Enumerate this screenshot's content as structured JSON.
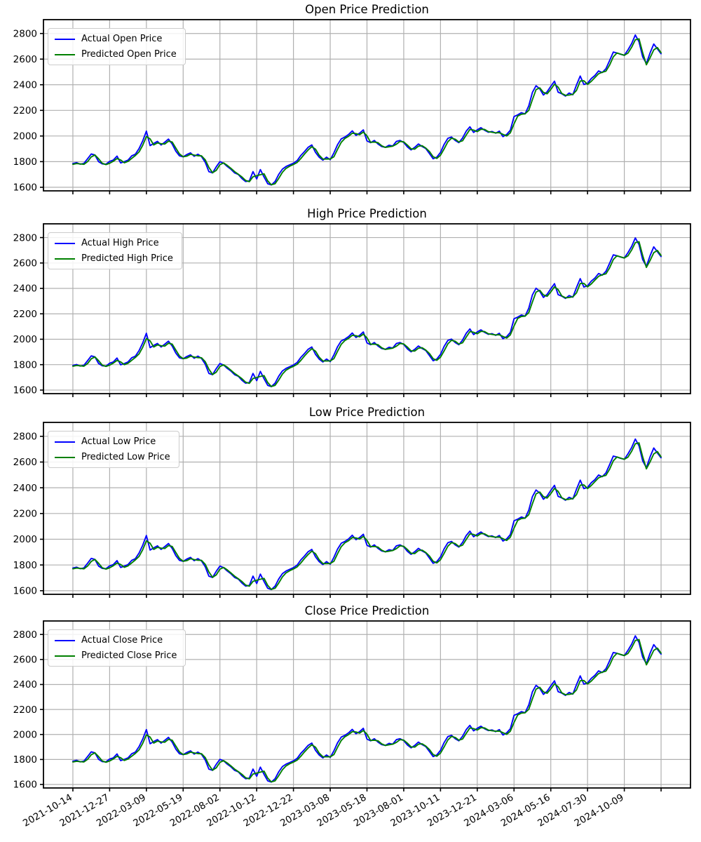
{
  "figure": {
    "background": "#ffffff",
    "description": "Four stacked line charts comparing actual vs predicted OHLC prices"
  },
  "chart_data": {
    "type": "line",
    "grid": true,
    "legend_position": "upper left",
    "colors": {
      "actual": "#0000ff",
      "predicted": "#008000",
      "grid": "#b0b0b0",
      "axis": "#000000"
    },
    "y_axis": {
      "ticks": [
        1600,
        1800,
        2000,
        2200,
        2400,
        2600,
        2800
      ],
      "ylim_render": [
        1572,
        2908
      ]
    },
    "x_axis": {
      "tick_labels": [
        "2021-10-14",
        "2021-12-27",
        "2022-03-09",
        "2022-05-19",
        "2022-08-02",
        "2022-10-12",
        "2022-12-22",
        "2023-03-08",
        "2023-05-18",
        "2023-08-01",
        "2023-10-11",
        "2023-12-21",
        "2024-03-06",
        "2024-05-16",
        "2024-07-30",
        "2024-10-09"
      ],
      "tick_step_days": 50,
      "total_gridlines": 17,
      "label_rotation_deg": 30
    },
    "sample_step_days": 5,
    "series_base": {
      "actual": [
        1785,
        1792,
        1780,
        1786,
        1822,
        1860,
        1852,
        1800,
        1782,
        1780,
        1802,
        1812,
        1843,
        1790,
        1800,
        1812,
        1845,
        1858,
        1902,
        1962,
        2038,
        1925,
        1942,
        1958,
        1930,
        1952,
        1976,
        1938,
        1882,
        1845,
        1838,
        1855,
        1868,
        1842,
        1858,
        1840,
        1795,
        1722,
        1712,
        1760,
        1800,
        1788,
        1762,
        1740,
        1712,
        1700,
        1668,
        1645,
        1650,
        1722,
        1665,
        1738,
        1680,
        1628,
        1618,
        1645,
        1700,
        1742,
        1762,
        1775,
        1788,
        1808,
        1848,
        1878,
        1912,
        1930,
        1872,
        1835,
        1812,
        1835,
        1815,
        1868,
        1932,
        1978,
        1992,
        2012,
        2040,
        2005,
        2022,
        2048,
        1962,
        1948,
        1965,
        1938,
        1918,
        1912,
        1928,
        1922,
        1958,
        1965,
        1950,
        1915,
        1892,
        1912,
        1938,
        1918,
        1902,
        1862,
        1822,
        1835,
        1872,
        1935,
        1982,
        1992,
        1965,
        1948,
        1985,
        2038,
        2072,
        2028,
        2048,
        2065,
        2045,
        2030,
        2035,
        2022,
        2038,
        1995,
        2012,
        2045,
        2152,
        2165,
        2182,
        2172,
        2235,
        2340,
        2392,
        2368,
        2320,
        2345,
        2388,
        2428,
        2342,
        2330,
        2312,
        2335,
        2322,
        2398,
        2468,
        2402,
        2412,
        2448,
        2472,
        2508,
        2495,
        2525,
        2588,
        2655,
        2648,
        2638,
        2630,
        2672,
        2722,
        2788,
        2735,
        2618,
        2565,
        2648,
        2718,
        2680,
        2642
      ],
      "predicted": [
        1779,
        1785,
        1782,
        1779,
        1800,
        1837,
        1852,
        1822,
        1787,
        1777,
        1787,
        1803,
        1824,
        1813,
        1791,
        1802,
        1825,
        1848,
        1876,
        1928,
        1996,
        1978,
        1930,
        1946,
        1940,
        1937,
        1960,
        1953,
        1906,
        1860,
        1838,
        1843,
        1858,
        1851,
        1846,
        1845,
        1814,
        1755,
        1713,
        1732,
        1776,
        1790,
        1771,
        1747,
        1722,
        1702,
        1680,
        1653,
        1644,
        1682,
        1690,
        1698,
        1705,
        1650,
        1619,
        1628,
        1669,
        1717,
        1748,
        1765,
        1778,
        1794,
        1824,
        1859,
        1891,
        1917,
        1897,
        1850,
        1820,
        1820,
        1821,
        1838,
        1896,
        1951,
        1981,
        1998,
        2022,
        2019,
        2010,
        2031,
        2001,
        1951,
        1953,
        1948,
        1924,
        1911,
        1916,
        1921,
        1936,
        1958,
        1954,
        1929,
        1900,
        1898,
        1921,
        1924,
        1906,
        1878,
        1838,
        1825,
        1850,
        1900,
        1955,
        1983,
        1975,
        1953,
        1963,
        2008,
        2051,
        2046,
        2034,
        2053,
        2051,
        2034,
        2029,
        2025,
        2026,
        2013,
        2000,
        2025,
        2095,
        2155,
        2170,
        2173,
        2200,
        2284,
        2362,
        2376,
        2340,
        2329,
        2363,
        2404,
        2381,
        2332,
        2317,
        2320,
        2325,
        2356,
        2429,
        2431,
        2403,
        2426,
        2456,
        2486,
        2498,
        2506,
        2553,
        2618,
        2648,
        2639,
        2630,
        2647,
        2693,
        2751,
        2758,
        2650,
        2556,
        2610,
        2672,
        2690,
        2650
      ]
    },
    "panels": [
      {
        "id": "open",
        "title": "Open Price Prediction",
        "value_offset": 0,
        "legend": [
          {
            "label": "Actual Open Price",
            "series": "actual"
          },
          {
            "label": "Predicted Open Price",
            "series": "predicted"
          }
        ]
      },
      {
        "id": "high",
        "title": "High Price Prediction",
        "value_offset": 9,
        "legend": [
          {
            "label": "Actual High Price",
            "series": "actual"
          },
          {
            "label": "Predicted High Price",
            "series": "predicted"
          }
        ]
      },
      {
        "id": "low",
        "title": "Low Price Prediction",
        "value_offset": -9,
        "legend": [
          {
            "label": "Actual Low Price",
            "series": "actual"
          },
          {
            "label": "Predicted Low Price",
            "series": "predicted"
          }
        ]
      },
      {
        "id": "close",
        "title": "Close Price Prediction",
        "value_offset": 1,
        "legend": [
          {
            "label": "Actual Close Price",
            "series": "actual"
          },
          {
            "label": "Predicted Close Price",
            "series": "predicted"
          }
        ]
      }
    ]
  }
}
